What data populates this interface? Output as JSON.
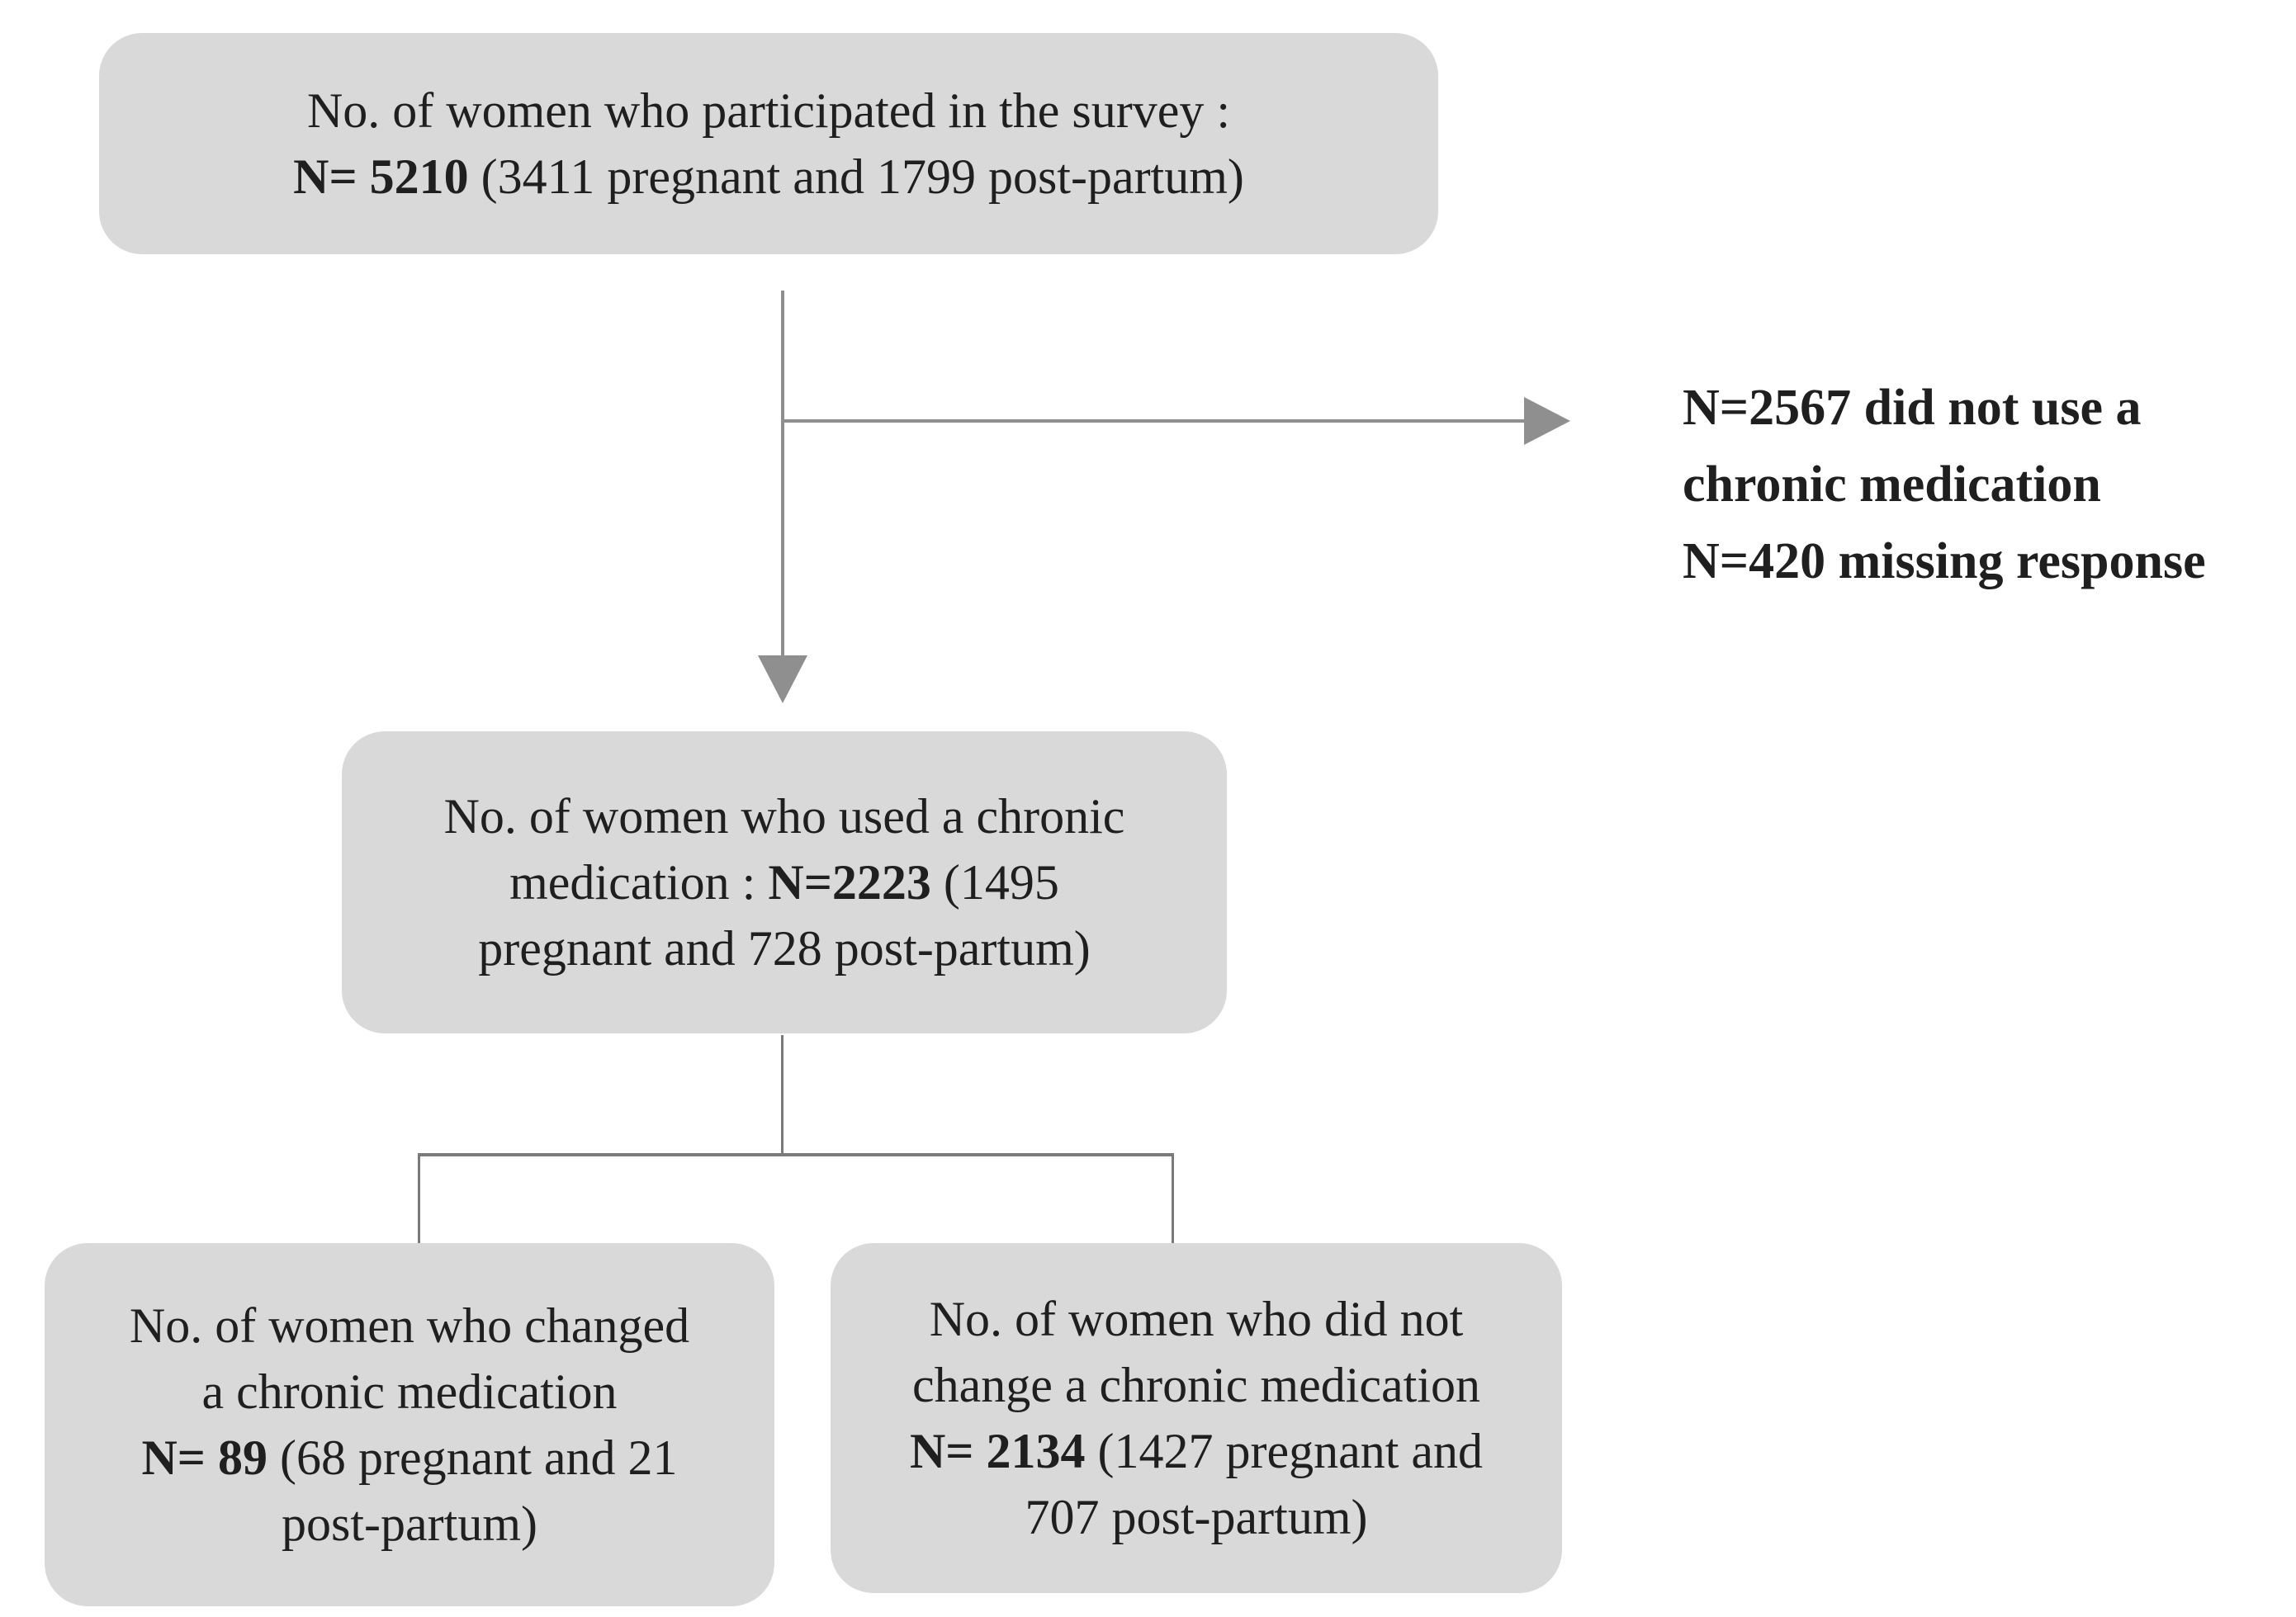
{
  "colors": {
    "background": "#ffffff",
    "box_fill": "#d9d9d9",
    "text": "#1f1f1f",
    "connector": "#8f8f8f",
    "connector_dark": "#7a7a7a"
  },
  "boxes": {
    "survey": {
      "line1": "No. of women who participated in the survey :",
      "line2_bold": "N= 5210",
      "line2_rest": " (3411 pregnant and 1799 post-partum)"
    },
    "used": {
      "line1": "No. of women who used a chronic",
      "line2_pre": "medication : ",
      "line2_bold": "N=2223",
      "line2_rest": " (1495",
      "line3": "pregnant and 728 post-partum)"
    },
    "changed": {
      "line1": "No. of women who changed",
      "line2": "a chronic medication",
      "line3_bold": "N= 89",
      "line3_rest": " (68 pregnant and 21",
      "line4": "post-partum)"
    },
    "not_changed": {
      "line1": "No. of women who did not",
      "line2": "change a chronic medication",
      "line3_bold": "N= 2134",
      "line3_rest": " (1427 pregnant and",
      "line4": "707 post-partum)"
    }
  },
  "side_note": {
    "line1": "N=2567 did not use a",
    "line2": "chronic medication",
    "line3": "N=420 missing response"
  }
}
